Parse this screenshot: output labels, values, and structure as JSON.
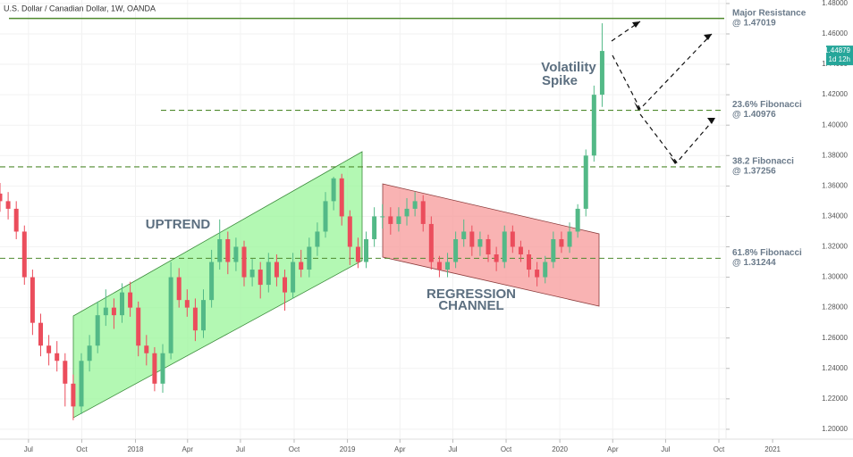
{
  "chart_data": {
    "type": "candlestick",
    "title": "U.S. Dollar / Canadian Dollar, 1W, OANDA",
    "x": [
      0,
      2,
      4,
      6,
      8,
      10,
      12,
      14,
      16,
      18,
      20,
      22,
      24,
      26,
      28,
      30,
      32,
      34,
      36,
      38,
      40,
      42,
      44,
      46,
      48,
      50,
      52,
      54,
      56,
      58,
      60,
      62,
      64,
      66,
      68,
      70,
      72,
      74,
      76,
      78,
      80,
      82,
      84,
      86,
      88,
      90,
      92,
      94,
      96,
      98,
      100,
      102,
      104,
      106,
      108,
      110,
      112,
      114,
      116,
      118,
      120,
      122,
      124,
      126,
      128,
      130,
      132,
      134,
      136,
      138,
      140,
      142,
      144,
      146,
      148
    ],
    "open": [
      1.355,
      1.35,
      1.345,
      1.33,
      1.3,
      1.27,
      1.255,
      1.25,
      1.245,
      1.23,
      1.215,
      1.245,
      1.255,
      1.275,
      1.28,
      1.275,
      1.29,
      1.28,
      1.255,
      1.25,
      1.23,
      1.25,
      1.3,
      1.285,
      1.28,
      1.265,
      1.285,
      1.31,
      1.325,
      1.31,
      1.32,
      1.3,
      1.305,
      1.295,
      1.31,
      1.3,
      1.29,
      1.31,
      1.305,
      1.32,
      1.33,
      1.35,
      1.365,
      1.34,
      1.32,
      1.31,
      1.325,
      1.34,
      1.34,
      1.335,
      1.34,
      1.345,
      1.35,
      1.335,
      1.31,
      1.305,
      1.31,
      1.325,
      1.33,
      1.32,
      1.325,
      1.315,
      1.31,
      1.33,
      1.32,
      1.315,
      1.305,
      1.3,
      1.31,
      1.325,
      1.32,
      1.33,
      1.345,
      1.38,
      1.42
    ],
    "high": [
      1.362,
      1.356,
      1.35,
      1.334,
      1.305,
      1.276,
      1.262,
      1.258,
      1.25,
      1.236,
      1.25,
      1.262,
      1.284,
      1.292,
      1.286,
      1.296,
      1.297,
      1.284,
      1.262,
      1.254,
      1.256,
      1.31,
      1.306,
      1.292,
      1.286,
      1.292,
      1.318,
      1.338,
      1.33,
      1.326,
      1.324,
      1.312,
      1.31,
      1.316,
      1.315,
      1.305,
      1.316,
      1.318,
      1.326,
      1.336,
      1.356,
      1.366,
      1.368,
      1.344,
      1.326,
      1.33,
      1.346,
      1.348,
      1.346,
      1.346,
      1.352,
      1.356,
      1.354,
      1.34,
      1.314,
      1.316,
      1.33,
      1.338,
      1.334,
      1.33,
      1.328,
      1.32,
      1.334,
      1.334,
      1.324,
      1.318,
      1.31,
      1.314,
      1.33,
      1.33,
      1.336,
      1.348,
      1.384,
      1.426,
      1.467
    ],
    "low": [
      1.343,
      1.338,
      1.325,
      1.295,
      1.262,
      1.248,
      1.242,
      1.238,
      1.215,
      1.206,
      1.21,
      1.238,
      1.25,
      1.268,
      1.266,
      1.27,
      1.274,
      1.248,
      1.242,
      1.225,
      1.224,
      1.246,
      1.28,
      1.274,
      1.258,
      1.26,
      1.28,
      1.305,
      1.302,
      1.304,
      1.294,
      1.294,
      1.286,
      1.29,
      1.294,
      1.278,
      1.286,
      1.3,
      1.3,
      1.314,
      1.326,
      1.344,
      1.334,
      1.308,
      1.306,
      1.306,
      1.32,
      1.332,
      1.328,
      1.33,
      1.334,
      1.34,
      1.33,
      1.305,
      1.3,
      1.3,
      1.306,
      1.32,
      1.314,
      1.314,
      1.31,
      1.304,
      1.306,
      1.316,
      1.31,
      1.3,
      1.294,
      1.296,
      1.306,
      1.316,
      1.316,
      1.326,
      1.34,
      1.376,
      1.412
    ],
    "close": [
      1.35,
      1.345,
      1.33,
      1.3,
      1.27,
      1.255,
      1.25,
      1.245,
      1.23,
      1.215,
      1.245,
      1.255,
      1.275,
      1.28,
      1.275,
      1.29,
      1.28,
      1.255,
      1.25,
      1.23,
      1.25,
      1.3,
      1.285,
      1.28,
      1.265,
      1.285,
      1.31,
      1.325,
      1.31,
      1.32,
      1.3,
      1.305,
      1.295,
      1.31,
      1.3,
      1.29,
      1.31,
      1.305,
      1.32,
      1.33,
      1.35,
      1.365,
      1.34,
      1.32,
      1.31,
      1.325,
      1.34,
      1.34,
      1.335,
      1.34,
      1.345,
      1.35,
      1.335,
      1.31,
      1.305,
      1.31,
      1.325,
      1.33,
      1.32,
      1.325,
      1.315,
      1.31,
      1.33,
      1.32,
      1.315,
      1.305,
      1.3,
      1.31,
      1.325,
      1.32,
      1.33,
      1.345,
      1.38,
      1.42,
      1.44879
    ],
    "up_color": "#53b987",
    "down_color": "#eb4d5c",
    "xlim": [
      0,
      209
    ],
    "xticks": [
      {
        "value": 7.0,
        "label": "Jul"
      },
      {
        "value": 20.1,
        "label": "Oct"
      },
      {
        "value": 33.3,
        "label": "2018"
      },
      {
        "value": 46.1,
        "label": "Apr"
      },
      {
        "value": 59.1,
        "label": "Jul"
      },
      {
        "value": 72.3,
        "label": "Oct"
      },
      {
        "value": 85.4,
        "label": "2019"
      },
      {
        "value": 98.3,
        "label": "Apr"
      },
      {
        "value": 111.3,
        "label": "Jul"
      },
      {
        "value": 124.4,
        "label": "Oct"
      },
      {
        "value": 137.6,
        "label": "2020"
      },
      {
        "value": 150.6,
        "label": "Apr"
      },
      {
        "value": 163.6,
        "label": "Jul"
      },
      {
        "value": 176.7,
        "label": "Oct"
      },
      {
        "value": 189.9,
        "label": "2021"
      }
    ],
    "ylim": [
      1.1935,
      1.4823
    ],
    "yticks": [
      {
        "value": 1.2,
        "label": "1.20000"
      },
      {
        "value": 1.22,
        "label": "1.22000"
      },
      {
        "value": 1.24,
        "label": "1.24000"
      },
      {
        "value": 1.26,
        "label": "1.26000"
      },
      {
        "value": 1.28,
        "label": "1.28000"
      },
      {
        "value": 1.3,
        "label": "1.30000"
      },
      {
        "value": 1.32,
        "label": "1.32000"
      },
      {
        "value": 1.34,
        "label": "1.34000"
      },
      {
        "value": 1.36,
        "label": "1.36000"
      },
      {
        "value": 1.38,
        "label": "1.38000"
      },
      {
        "value": 1.4,
        "label": "1.40000"
      },
      {
        "value": 1.42,
        "label": "1.42000"
      },
      {
        "value": 1.44,
        "label": "1.44000"
      },
      {
        "value": 1.46,
        "label": "1.46000"
      },
      {
        "value": 1.48,
        "label": "1.48000"
      }
    ],
    "grid": true,
    "last_price": {
      "value": 1.44879,
      "label": "1.44879",
      "countdown": "1d 12h",
      "color": "#26a69a"
    },
    "levels": [
      {
        "value": 1.47019,
        "name": "Major Resistance",
        "label": "@ 1.47019",
        "style": "solid",
        "color": "#4f8a2e"
      },
      {
        "value": 1.40976,
        "name": "23.6% Fibonacci",
        "label": "@ 1.40976",
        "style": "dashed",
        "color": "#4f8a2e"
      },
      {
        "value": 1.37256,
        "name": "38.2 Fibonacci",
        "label": "@ 1.37256",
        "style": "dashed",
        "color": "#4f8a2e"
      },
      {
        "value": 1.31244,
        "name": "61.8% Fibonacci",
        "label": "@ 1.31244",
        "style": "dashed",
        "color": "#4f8a2e"
      }
    ],
    "annotations": {
      "uptrend": "UPTREND",
      "channel": [
        "REGRESSION",
        "CHANNEL"
      ],
      "spike": [
        "Volatility",
        "Spike"
      ]
    }
  }
}
